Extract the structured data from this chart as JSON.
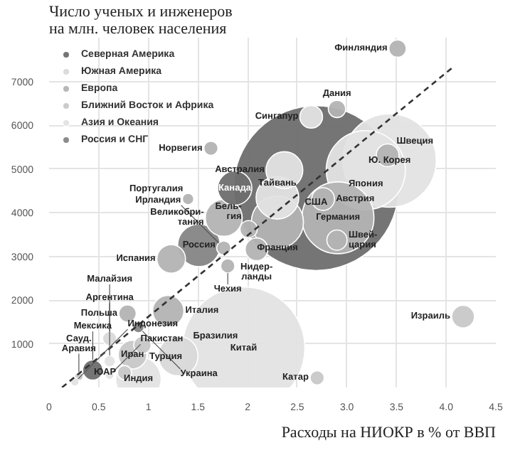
{
  "chart_data": {
    "type": "bubble",
    "ylabel": "Число ученых и инженеров\nна млн. человек населения",
    "xlabel": "Расходы на НИОКР в % от ВВП",
    "xlim": [
      0,
      4.5
    ],
    "ylim": [
      0,
      8000
    ],
    "xticks": [
      0,
      0.5,
      1,
      1.5,
      2,
      2.5,
      {
        "value": 3,
        "label": "3.0"
      },
      3.5,
      {
        "value": 4,
        "label": "4.0"
      },
      4.5
    ],
    "yticks": [
      1000,
      2000,
      3000,
      4000,
      5000,
      6000,
      7000
    ],
    "grid": true,
    "legend": "top left",
    "series": [
      {
        "name": "Северная Америка",
        "color": "#6e6e6e",
        "x": [
          2.69,
          1.87,
          0.44
        ],
        "values": [
          4560,
          4560,
          400
        ],
        "sizes": [
          1,
          0.043,
          0.015
        ]
      },
      {
        "name": "Южная Америка",
        "color": "#d9d9d9",
        "x": [
          1.3,
          0.61
        ],
        "values": [
          720,
          1120
        ],
        "sizes": [
          0.058,
          0.0074
        ]
      },
      {
        "name": "Европа",
        "color": "#b3b3b3",
        "x": [
          2.91,
          2.3,
          1.76,
          1.2,
          1.23,
          2.76,
          2.09,
          3.41,
          2.9,
          3.51,
          2.9,
          2.01,
          0.79,
          1.63,
          1.76,
          1.8,
          1.4
        ],
        "values": [
          3880,
          3780,
          3880,
          1750,
          2940,
          4310,
          3160,
          5310,
          3370,
          7750,
          6370,
          3620,
          1690,
          5470,
          3190,
          2780,
          4310
        ],
        "sizes": [
          0.19,
          0.1,
          0.05,
          0.036,
          0.03,
          0.019,
          0.019,
          0.019,
          0.015,
          0.011,
          0.011,
          0.011,
          0.011,
          0.0074,
          0.0074,
          0.0074,
          0.0048
        ]
      },
      {
        "name": "Ближний Восток и Африка",
        "color": "#c8c8c8",
        "x": [
          0.84,
          4.17,
          0.94,
          2.7,
          0.76,
          0.3
        ],
        "values": [
          750,
          1620,
          970,
          220,
          340,
          250
        ],
        "sizes": [
          0.03,
          0.019,
          0.011,
          0.0074,
          0.0074,
          0.0027
        ]
      },
      {
        "name": "Азия и Океания",
        "color": "#e3e3e3",
        "x": [
          1.96,
          3.43,
          3.19,
          0.9,
          2.3,
          2.37,
          2.64,
          0.61,
          0.61,
          0.26
        ],
        "values": [
          900,
          5190,
          4970,
          190,
          4340,
          4970,
          6190,
          600,
          280,
          130
        ],
        "sizes": [
          0.55,
          0.32,
          0.23,
          0.076,
          0.067,
          0.05,
          0.019,
          0.0048,
          0.0027,
          0.0027
        ]
      },
      {
        "name": "Россия и СНГ",
        "color": "#858585",
        "x": [
          1.51,
          0.9
        ],
        "values": [
          3250,
          1380
        ],
        "sizes": [
          0.067,
          0.0048
        ]
      },
      {
        "type": "line",
        "color": "#333333",
        "line_style": "dashed",
        "x": [
          0.13,
          4.06
        ],
        "values": [
          0,
          7310
        ]
      }
    ],
    "annotations": [
      {
        "text": "США",
        "x": 2.69,
        "y": 4560
      },
      {
        "text": "Канада",
        "x": 1.87,
        "y": 4560
      },
      {
        "text": "Мексика",
        "x": 0.44,
        "y": 400
      },
      {
        "text": "Бразилия",
        "x": 1.3,
        "y": 720
      },
      {
        "text": "Аргентина",
        "x": 0.61,
        "y": 1120
      },
      {
        "text": "Германия",
        "x": 2.91,
        "y": 3880
      },
      {
        "text": "Франция",
        "x": 2.3,
        "y": 3780
      },
      {
        "text": "Великобри-\nтания",
        "x": 1.76,
        "y": 3880
      },
      {
        "text": "Италия",
        "x": 1.2,
        "y": 1750
      },
      {
        "text": "Испания",
        "x": 1.23,
        "y": 2940
      },
      {
        "text": "Австрия",
        "x": 2.76,
        "y": 4310
      },
      {
        "text": "Нидер-\nланды",
        "x": 2.09,
        "y": 3160
      },
      {
        "text": "Швеция",
        "x": 3.41,
        "y": 5310
      },
      {
        "text": "Швей-\nцария",
        "x": 2.9,
        "y": 3370
      },
      {
        "text": "Финляндия",
        "x": 3.51,
        "y": 7750
      },
      {
        "text": "Дания",
        "x": 2.9,
        "y": 6370
      },
      {
        "text": "Бель-\nгия",
        "x": 2.01,
        "y": 3620
      },
      {
        "text": "Польша",
        "x": 0.79,
        "y": 1690
      },
      {
        "text": "Норвегия",
        "x": 1.63,
        "y": 5470
      },
      {
        "text": "Ирландия",
        "x": 1.76,
        "y": 3190
      },
      {
        "text": "Чехия",
        "x": 1.8,
        "y": 2780
      },
      {
        "text": "Португалия",
        "x": 1.4,
        "y": 4310
      },
      {
        "text": "Иран",
        "x": 0.84,
        "y": 750
      },
      {
        "text": "Израиль",
        "x": 4.17,
        "y": 1620
      },
      {
        "text": "Турция",
        "x": 0.94,
        "y": 970
      },
      {
        "text": "Катар",
        "x": 2.7,
        "y": 220
      },
      {
        "text": "ЮАР",
        "x": 0.76,
        "y": 340
      },
      {
        "text": "Сауд.\nАравия",
        "x": 0.3,
        "y": 250
      },
      {
        "text": "Китай",
        "x": 1.96,
        "y": 900
      },
      {
        "text": "Ю. Корея",
        "x": 3.43,
        "y": 5190
      },
      {
        "text": "Япония",
        "x": 3.19,
        "y": 4970
      },
      {
        "text": "Индия",
        "x": 0.9,
        "y": 190
      },
      {
        "text": "Тайвань",
        "x": 2.3,
        "y": 4340
      },
      {
        "text": "Австралия",
        "x": 2.37,
        "y": 4970
      },
      {
        "text": "Сингапур",
        "x": 2.64,
        "y": 6190
      },
      {
        "text": "Малайзия",
        "x": 0.61,
        "y": 600
      },
      {
        "text": "Пакистан",
        "x": 0.61,
        "y": 280
      },
      {
        "text": "Индонезия",
        "x": 0.26,
        "y": 125
      },
      {
        "text": "Россия",
        "x": 1.51,
        "y": 3250
      },
      {
        "text": "Украина",
        "x": 0.9,
        "y": 1380
      }
    ]
  }
}
